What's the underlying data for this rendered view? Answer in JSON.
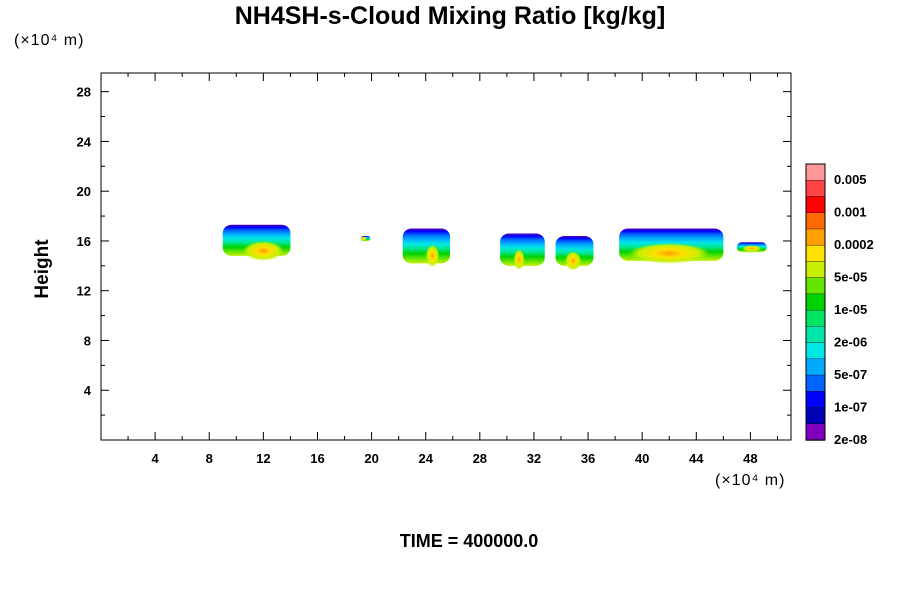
{
  "chart_data": {
    "type": "heatmap",
    "title": "NH4SH-s-Cloud Mixing Ratio [kg/kg]",
    "xlabel": "",
    "ylabel": "Height",
    "x_unit": "(×10⁴ m)",
    "y_unit": "(×10⁴ m)",
    "xlim": [
      0,
      51
    ],
    "ylim": [
      0,
      29.5
    ],
    "x_ticks": [
      "4",
      "8",
      "12",
      "16",
      "20",
      "24",
      "28",
      "32",
      "36",
      "40",
      "44",
      "48"
    ],
    "y_ticks": [
      "4",
      "8",
      "12",
      "16",
      "20",
      "24",
      "28"
    ],
    "legend_labels": [
      "0.005",
      "0.001",
      "0.0002",
      "5e-05",
      "1e-05",
      "2e-06",
      "5e-07",
      "1e-07",
      "2e-08"
    ],
    "colorbar_colors": [
      "#ff9999",
      "#ff4444",
      "#ff0000",
      "#ff6a00",
      "#ffa000",
      "#ffe000",
      "#c8f000",
      "#64e600",
      "#00d200",
      "#00e664",
      "#00e6aa",
      "#00e6e6",
      "#00aaff",
      "#0064ff",
      "#0000ff",
      "#0000b4",
      "#8000c0"
    ],
    "clouds": [
      {
        "x0": 9.0,
        "x1": 14.0,
        "y0": 14.8,
        "y1": 17.3,
        "core": [
          10.5,
          13.5,
          15.2
        ]
      },
      {
        "x0": 19.2,
        "x1": 19.9,
        "y0": 16.0,
        "y1": 16.4,
        "core": [
          19.3,
          19.5,
          16.2
        ]
      },
      {
        "x0": 22.3,
        "x1": 25.8,
        "y0": 14.2,
        "y1": 17.0,
        "core": [
          24.0,
          25.0,
          14.8
        ]
      },
      {
        "x0": 29.5,
        "x1": 32.8,
        "y0": 14.0,
        "y1": 16.6,
        "core": [
          30.5,
          31.3,
          14.5
        ]
      },
      {
        "x0": 33.6,
        "x1": 36.4,
        "y0": 14.0,
        "y1": 16.4,
        "core": [
          34.3,
          35.5,
          14.4
        ]
      },
      {
        "x0": 38.3,
        "x1": 46.0,
        "y0": 14.4,
        "y1": 17.0,
        "core": [
          39.0,
          45.0,
          15.0
        ]
      },
      {
        "x0": 47.0,
        "x1": 49.2,
        "y0": 15.1,
        "y1": 15.9,
        "core": [
          47.4,
          48.8,
          15.4
        ]
      }
    ]
  },
  "footer": {
    "time_label": "TIME = 400000.0"
  }
}
